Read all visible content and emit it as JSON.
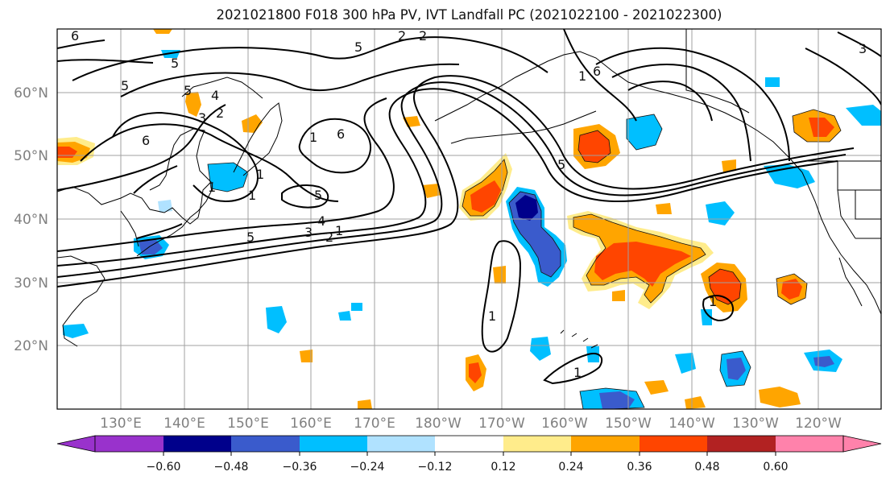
{
  "title": "2021021800 F018 300 hPa PV, IVT Landfall PC (2021022100 - 2021022300)",
  "map": {
    "lat_labels": [
      "60°N",
      "50°N",
      "40°N",
      "30°N",
      "20°N"
    ],
    "lon_labels": [
      "130°E",
      "140°E",
      "150°E",
      "160°E",
      "170°E",
      "180°W",
      "170°W",
      "160°W",
      "150°W",
      "140°W",
      "130°W",
      "120°W"
    ],
    "contour_labels": [
      "6",
      "5",
      "4",
      "3",
      "2",
      "1",
      "5",
      "6",
      "5",
      "2",
      "5",
      "6",
      "1",
      "1",
      "5",
      "5",
      "4",
      "3",
      "2",
      "1",
      "5",
      "6",
      "1",
      "1",
      "1",
      "3",
      "2",
      "1",
      "1"
    ]
  },
  "colorbar": {
    "labels": [
      "−0.60",
      "−0.48",
      "−0.36",
      "−0.24",
      "−0.12",
      "0.12",
      "0.24",
      "0.36",
      "0.48",
      "0.60"
    ],
    "colors": [
      "#9932cc",
      "#00008b",
      "#3a5bcc",
      "#00bfff",
      "#b0e2ff",
      "#ffffff",
      "#ffec8b",
      "#ffa500",
      "#ff4500",
      "#b22222",
      "#ff82ab"
    ]
  }
}
